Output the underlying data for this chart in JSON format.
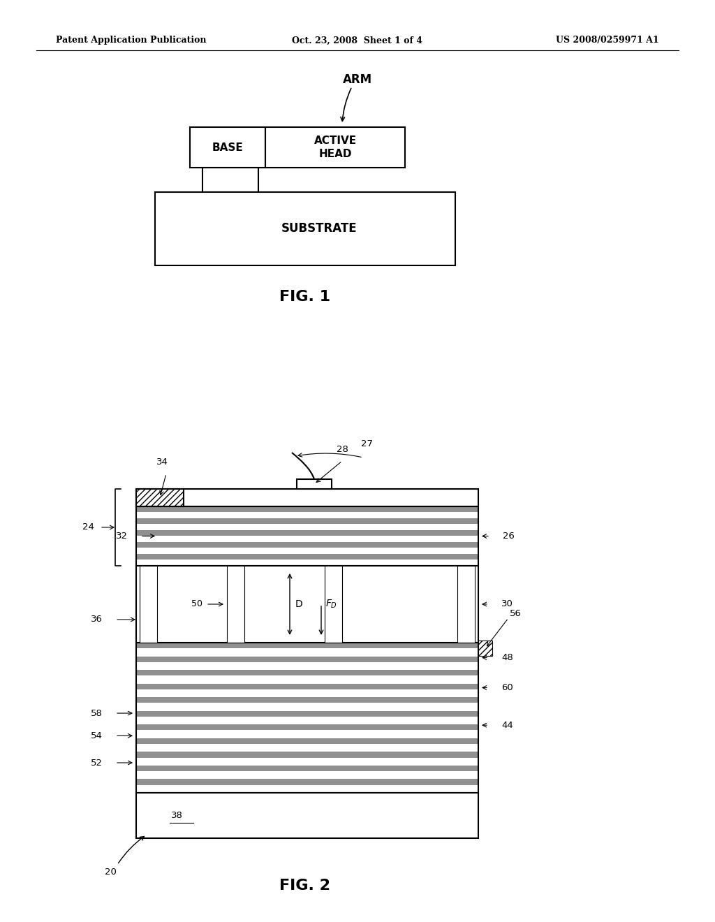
{
  "bg_color": "#ffffff",
  "header_left": "Patent Application Publication",
  "header_center": "Oct. 23, 2008  Sheet 1 of 4",
  "header_right": "US 2008/0259971 A1"
}
